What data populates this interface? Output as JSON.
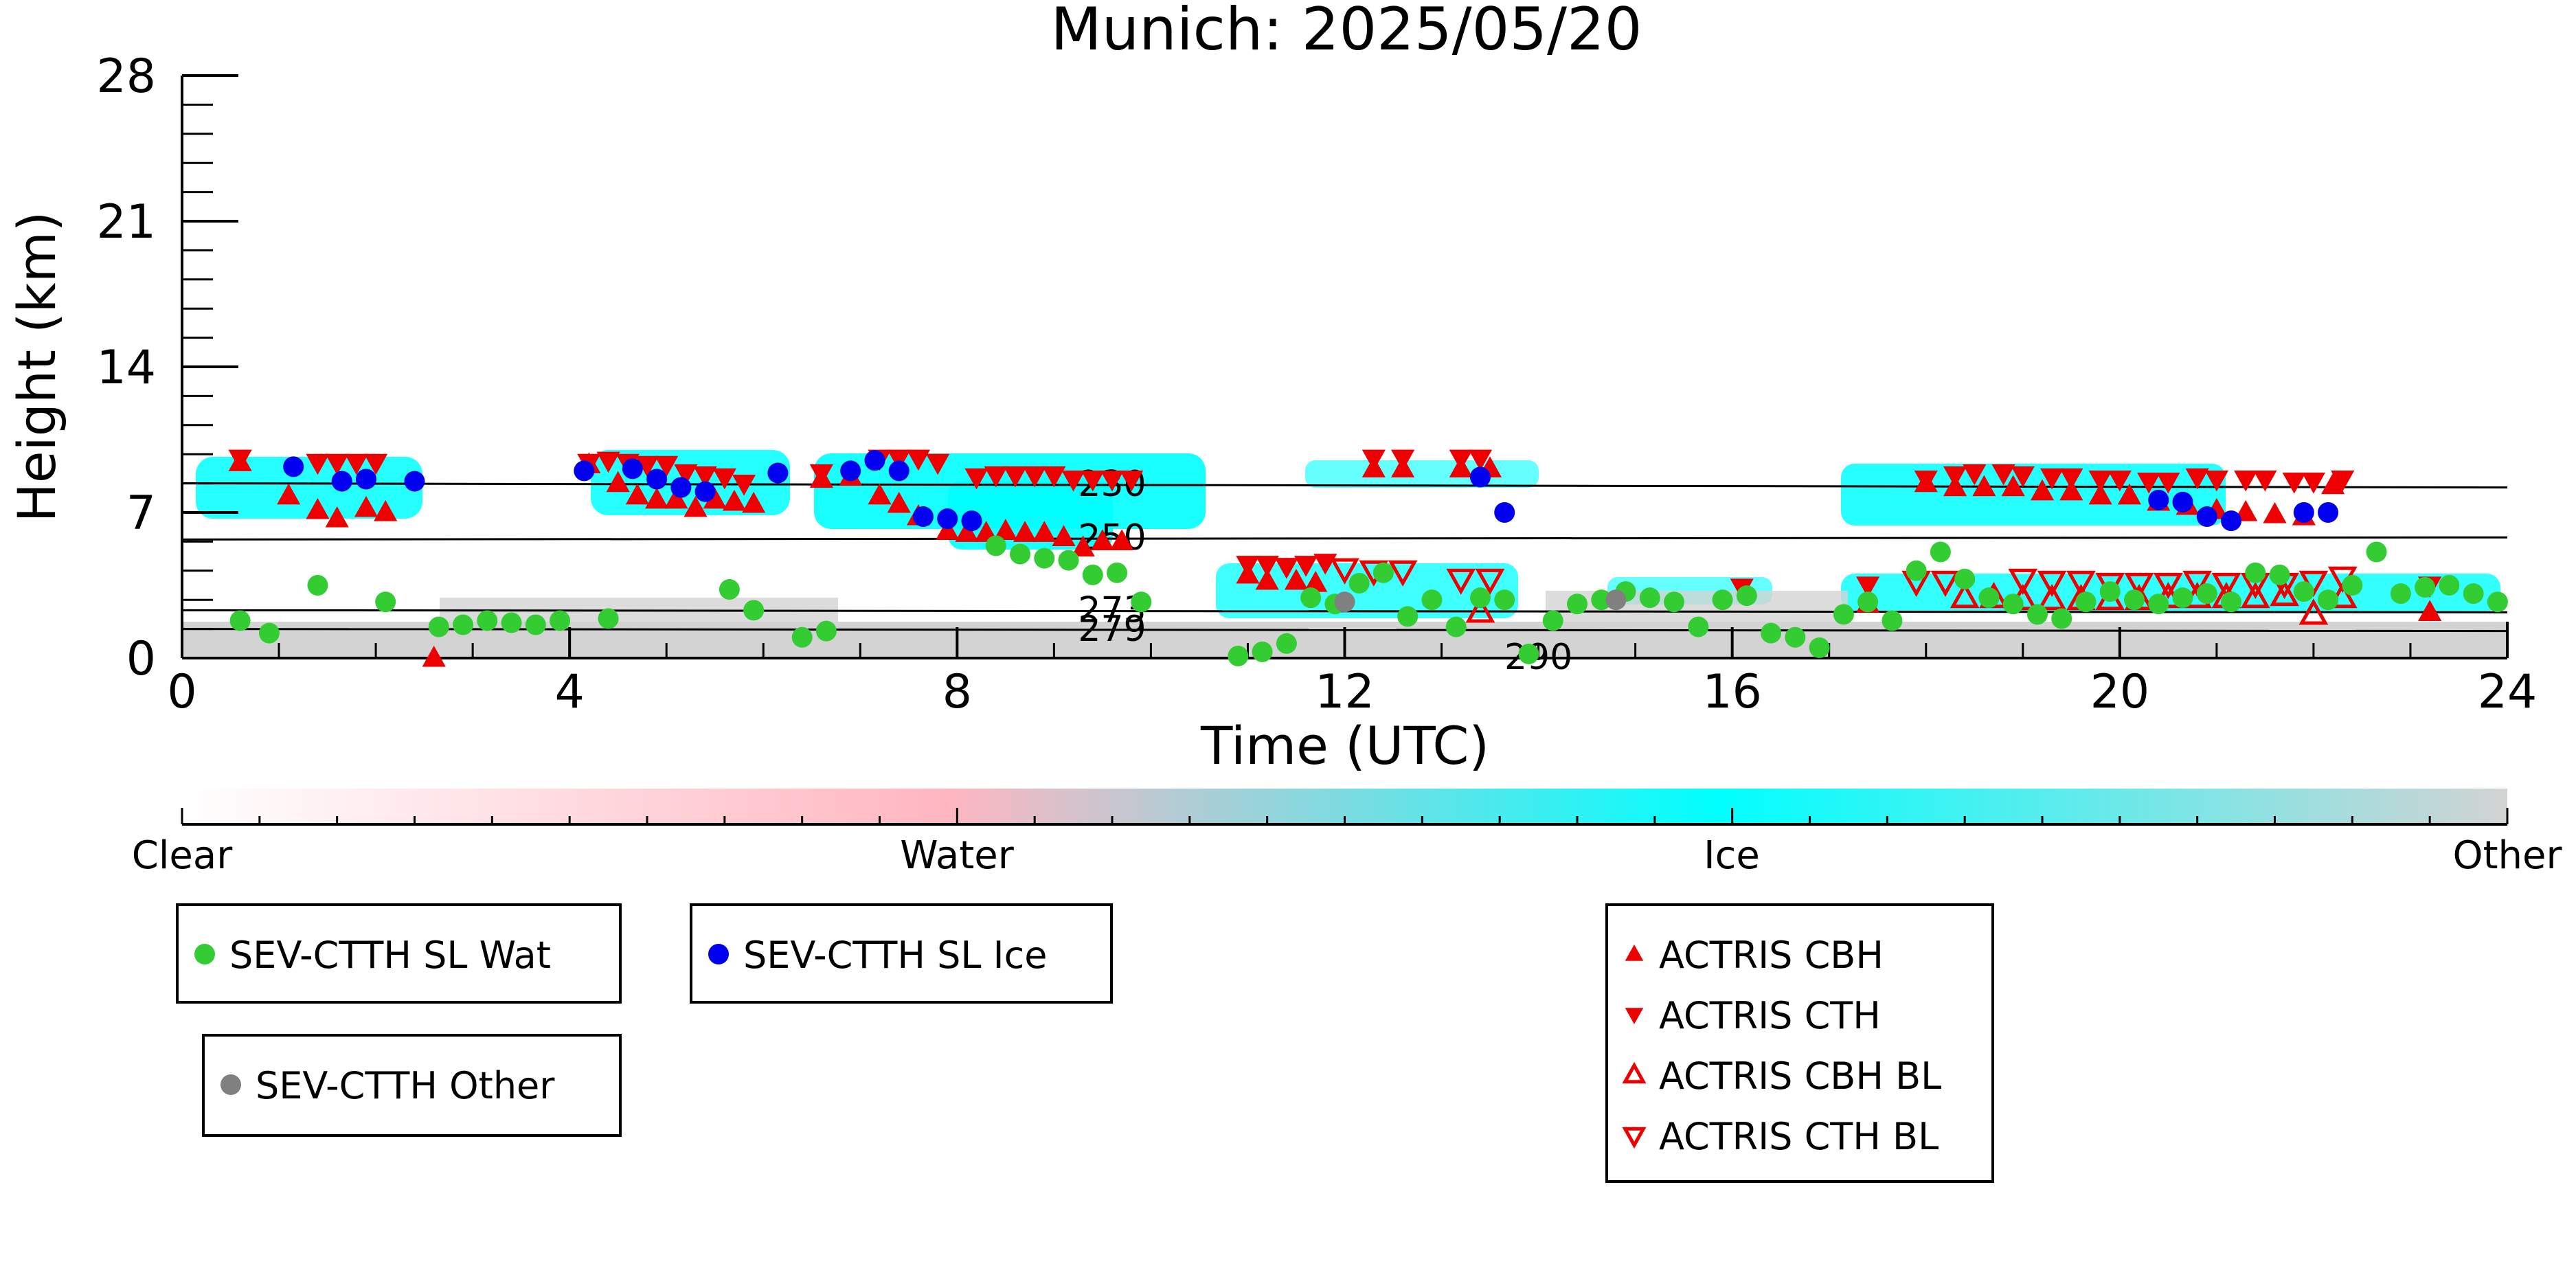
{
  "chart_data": {
    "type": "scatter",
    "title": "Munich: 2025/05/20",
    "xlabel": "Time (UTC)",
    "ylabel": "Height (km)",
    "xlim": [
      0,
      24
    ],
    "ylim": [
      0,
      28
    ],
    "xticks": [
      0,
      4,
      8,
      12,
      16,
      20,
      24
    ],
    "yticks": [
      0,
      7,
      14,
      21,
      28
    ],
    "grid": false,
    "colorbar": {
      "labels": [
        "Clear",
        "Water",
        "Ice",
        "Other"
      ],
      "colors": [
        "#ffffff",
        "#ffb6c1",
        "#00ffff",
        "#d3d3d3"
      ]
    },
    "isotherms": [
      {
        "label": "230",
        "y_start": 8.4,
        "y_end": 8.2,
        "label_x": 9.6
      },
      {
        "label": "250",
        "y_start": 5.7,
        "y_end": 5.8,
        "label_x": 9.6
      },
      {
        "label": "273",
        "y_start": 2.3,
        "y_end": 2.2,
        "label_x": 9.6
      },
      {
        "label": "279",
        "y_start": 1.4,
        "y_end": 1.3,
        "label_x": 9.6
      },
      {
        "label": "290",
        "y_start": 0.0,
        "y_end": 0.0,
        "label_x": 14.0
      }
    ],
    "legend": [
      {
        "label": "SEV-CTTH SL Wat",
        "marker": "circle",
        "color": "#33cc33"
      },
      {
        "label": "SEV-CTTH SL Ice",
        "marker": "circle",
        "color": "#0000ee"
      },
      {
        "label": "SEV-CTTH Other",
        "marker": "circle",
        "color": "#808080"
      },
      {
        "label": "ACTRIS CBH",
        "marker": "triangle-up",
        "color": "#ee0000"
      },
      {
        "label": "ACTRIS CTH",
        "marker": "triangle-down",
        "color": "#ee0000"
      },
      {
        "label": "ACTRIS CBH BL",
        "marker": "triangle-up-open",
        "color": "#ee0000"
      },
      {
        "label": "ACTRIS CTH BL",
        "marker": "triangle-down-open",
        "color": "#ee0000"
      }
    ],
    "series": [
      {
        "name": "SEV-CTTH SL Wat",
        "marker": "circle",
        "color": "#33cc33",
        "x": [
          0.6,
          0.9,
          1.4,
          2.1,
          2.65,
          2.9,
          3.15,
          3.4,
          3.65,
          3.9,
          4.4,
          5.65,
          5.9,
          6.4,
          6.65,
          8.4,
          8.65,
          8.9,
          9.15,
          9.4,
          9.65,
          9.9,
          10.9,
          11.15,
          11.4,
          11.65,
          11.9,
          12.15,
          12.4,
          12.65,
          12.9,
          13.15,
          13.4,
          13.65,
          13.9,
          14.15,
          14.4,
          14.65,
          14.9,
          15.15,
          15.4,
          15.65,
          15.9,
          16.15,
          16.4,
          16.65,
          16.9,
          17.15,
          17.4,
          17.65,
          17.9,
          18.15,
          18.4,
          18.65,
          18.9,
          19.15,
          19.4,
          19.65,
          19.9,
          20.15,
          20.4,
          20.65,
          20.9,
          21.15,
          21.4,
          21.65,
          21.9,
          22.15,
          22.4,
          22.65,
          22.9,
          23.15,
          23.4,
          23.65,
          23.9
        ],
        "y": [
          1.8,
          1.2,
          3.5,
          2.7,
          1.5,
          1.6,
          1.8,
          1.7,
          1.6,
          1.8,
          1.9,
          3.3,
          2.3,
          1.0,
          1.3,
          5.4,
          5.0,
          4.8,
          4.7,
          4.0,
          4.1,
          2.7,
          0.1,
          0.3,
          0.7,
          2.9,
          2.6,
          3.6,
          4.1,
          2.0,
          2.8,
          1.5,
          2.9,
          2.8,
          0.2,
          1.8,
          2.6,
          2.8,
          3.2,
          2.9,
          2.7,
          1.5,
          2.8,
          3.0,
          1.2,
          1.0,
          0.5,
          2.1,
          2.7,
          1.8,
          4.2,
          5.1,
          3.8,
          2.9,
          2.6,
          2.1,
          1.9,
          2.7,
          3.2,
          2.8,
          2.6,
          2.9,
          3.1,
          2.7,
          4.1,
          4.0,
          3.2,
          2.8,
          3.5,
          5.1,
          3.1,
          3.4,
          3.5,
          3.1,
          2.7
        ]
      },
      {
        "name": "SEV-CTTH SL Ice",
        "marker": "circle",
        "color": "#0000ee",
        "x": [
          1.15,
          1.65,
          1.9,
          2.4,
          4.15,
          4.65,
          4.9,
          5.15,
          5.4,
          6.15,
          6.9,
          7.15,
          7.4,
          7.65,
          7.9,
          8.15,
          13.4,
          13.65,
          20.4,
          20.65,
          20.9,
          21.15,
          21.9,
          22.15
        ],
        "y": [
          9.2,
          8.5,
          8.6,
          8.5,
          9.0,
          9.1,
          8.6,
          8.2,
          8.0,
          8.9,
          9.0,
          9.5,
          9.0,
          6.8,
          6.7,
          6.6,
          8.7,
          7.0,
          7.6,
          7.5,
          6.8,
          6.6,
          7.0,
          7.0
        ]
      },
      {
        "name": "SEV-CTTH Other",
        "marker": "circle",
        "color": "#808080",
        "x": [
          12.0,
          14.8
        ],
        "y": [
          2.7,
          2.8
        ]
      },
      {
        "name": "ACTRIS CBH",
        "marker": "triangle-up",
        "color": "#ee0000",
        "x": [
          0.6,
          1.1,
          1.4,
          1.6,
          1.9,
          2.1,
          2.6,
          4.2,
          4.5,
          4.7,
          4.9,
          5.1,
          5.3,
          5.5,
          5.7,
          5.9,
          6.6,
          6.9,
          7.2,
          7.4,
          7.6,
          7.9,
          8.1,
          8.3,
          8.5,
          8.7,
          8.9,
          9.1,
          9.3,
          9.5,
          9.7,
          11.0,
          11.2,
          11.5,
          11.7,
          12.3,
          12.6,
          13.2,
          13.5,
          17.4,
          18.0,
          18.3,
          18.6,
          18.9,
          19.2,
          19.5,
          19.8,
          20.1,
          20.4,
          20.7,
          21.0,
          21.3,
          21.6,
          21.9,
          22.2,
          23.2
        ],
        "y": [
          9.4,
          7.8,
          7.1,
          6.7,
          7.2,
          7.0,
          0.0,
          9.3,
          8.4,
          7.8,
          7.6,
          7.6,
          7.2,
          7.6,
          7.5,
          7.4,
          8.6,
          8.7,
          7.8,
          7.4,
          6.8,
          6.1,
          6.0,
          6.0,
          6.1,
          6.0,
          6.0,
          5.8,
          5.3,
          5.6,
          5.6,
          4.0,
          3.7,
          3.7,
          3.6,
          9.1,
          9.1,
          9.1,
          9.1,
          2.6,
          8.4,
          8.2,
          8.2,
          8.2,
          8.0,
          8.0,
          7.8,
          7.8,
          7.5,
          7.3,
          7.1,
          7.0,
          6.9,
          6.8,
          8.3,
          2.2
        ]
      },
      {
        "name": "ACTRIS CTH",
        "marker": "triangle-down",
        "color": "#ee0000",
        "x": [
          0.6,
          1.4,
          1.6,
          1.8,
          2.0,
          4.2,
          4.4,
          4.6,
          4.8,
          5.0,
          5.2,
          5.4,
          5.6,
          5.8,
          6.6,
          7.2,
          7.4,
          7.6,
          7.8,
          8.2,
          8.4,
          8.6,
          8.8,
          9.0,
          9.2,
          9.4,
          9.6,
          9.8,
          11.0,
          11.2,
          11.4,
          11.6,
          11.8,
          12.3,
          12.6,
          13.2,
          13.4,
          16.1,
          17.4,
          18.0,
          18.3,
          18.5,
          18.8,
          19.0,
          19.3,
          19.5,
          19.8,
          20.0,
          20.3,
          20.5,
          20.8,
          21.0,
          21.3,
          21.5,
          21.8,
          22.0,
          22.3,
          23.2
        ],
        "y": [
          9.6,
          9.4,
          9.4,
          9.4,
          9.4,
          9.4,
          9.5,
          9.4,
          9.3,
          9.3,
          8.9,
          8.8,
          8.7,
          8.4,
          8.9,
          9.6,
          9.6,
          9.6,
          9.4,
          8.7,
          8.8,
          8.8,
          8.8,
          8.8,
          8.6,
          8.6,
          8.6,
          8.6,
          4.5,
          4.5,
          4.4,
          4.5,
          4.6,
          9.6,
          9.6,
          9.6,
          9.6,
          3.4,
          3.5,
          8.6,
          8.8,
          8.9,
          8.9,
          8.8,
          8.7,
          8.7,
          8.6,
          8.6,
          8.5,
          8.5,
          8.7,
          8.6,
          8.6,
          8.6,
          8.5,
          8.5,
          8.6,
          3.5
        ]
      },
      {
        "name": "ACTRIS CBH BL",
        "marker": "triangle-up-open",
        "color": "#ee0000",
        "x": [
          13.4,
          18.4,
          18.7,
          19.0,
          19.3,
          19.6,
          19.9,
          20.2,
          20.5,
          20.8,
          21.1,
          21.4,
          21.7,
          22.0,
          22.3
        ],
        "y": [
          2.2,
          2.9,
          2.9,
          2.8,
          2.8,
          2.8,
          2.8,
          2.8,
          2.9,
          2.9,
          2.9,
          2.9,
          3.0,
          2.1,
          2.9
        ]
      },
      {
        "name": "ACTRIS CTH BL",
        "marker": "triangle-down-open",
        "color": "#ee0000",
        "x": [
          12.0,
          12.3,
          12.6,
          13.2,
          13.5,
          17.9,
          18.2,
          19.0,
          19.3,
          19.6,
          19.9,
          20.2,
          20.5,
          20.8,
          21.1,
          21.4,
          21.7,
          22.0,
          22.3
        ],
        "y": [
          4.3,
          4.2,
          4.2,
          3.8,
          3.8,
          3.7,
          3.7,
          3.8,
          3.7,
          3.7,
          3.6,
          3.6,
          3.6,
          3.7,
          3.6,
          3.6,
          3.6,
          3.7,
          3.9
        ]
      }
    ]
  }
}
